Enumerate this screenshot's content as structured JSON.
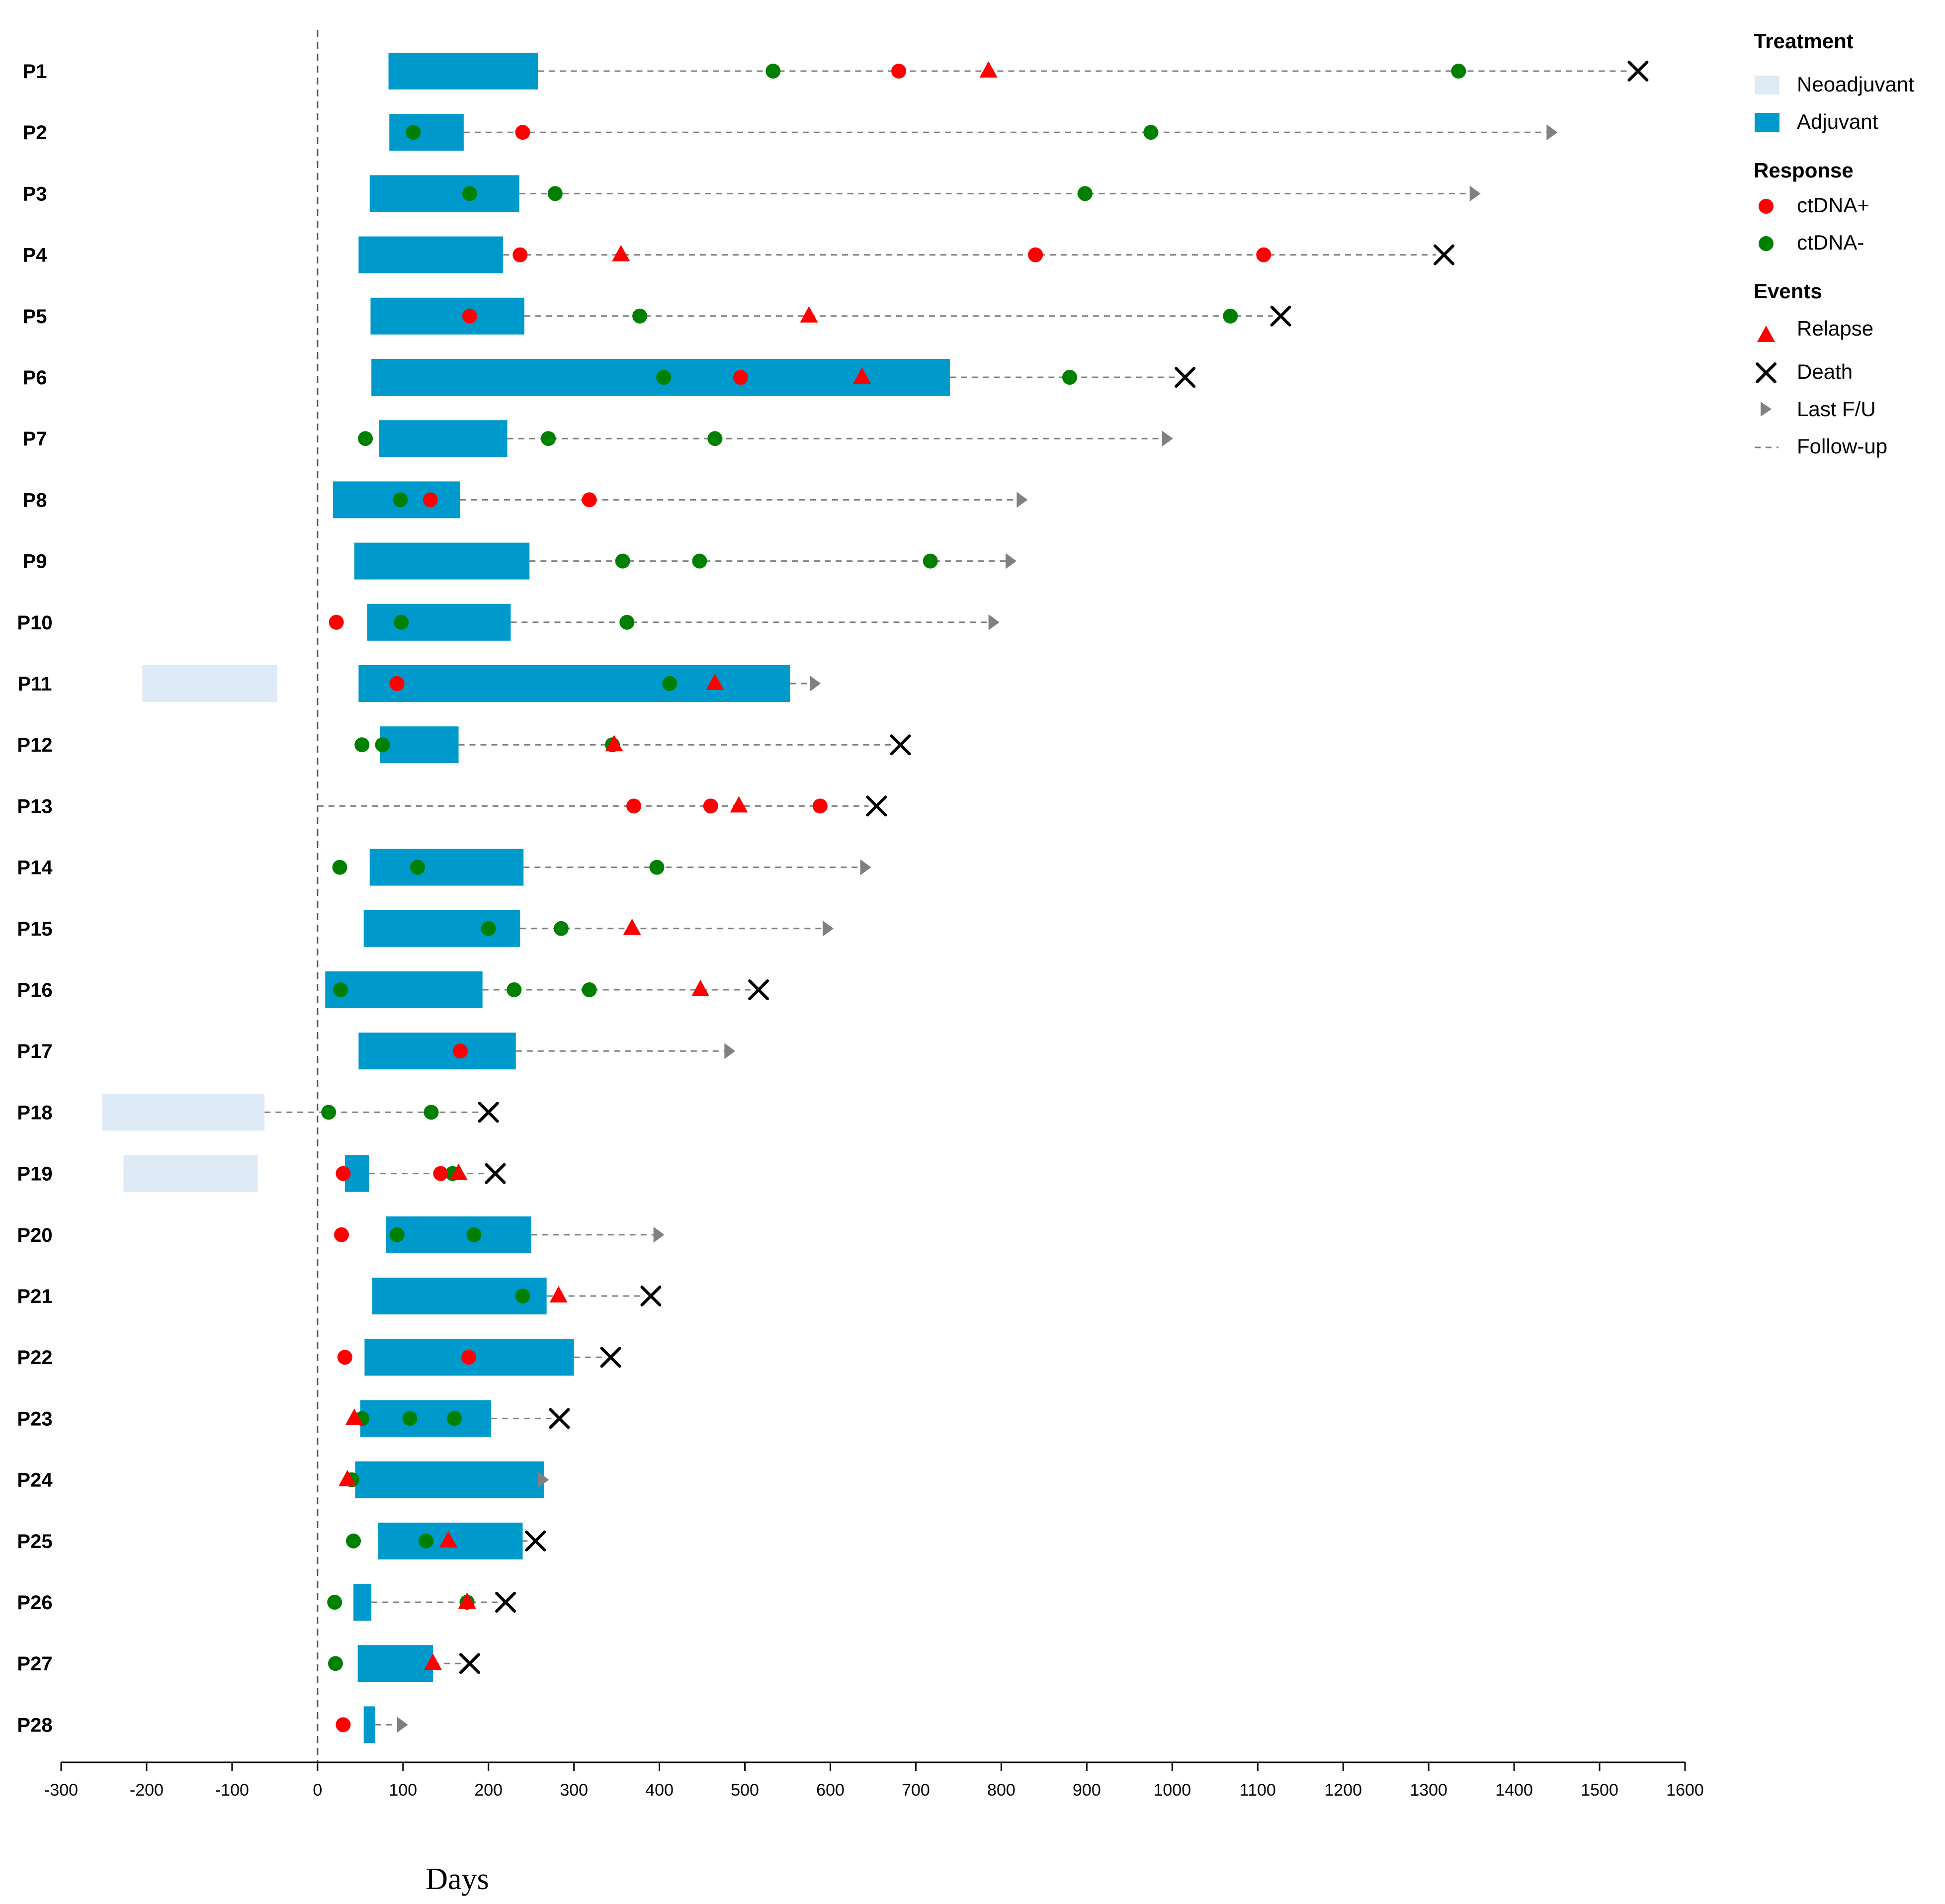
{
  "chart_data": {
    "type": "swimmer",
    "xlabel": "Days",
    "xlim": [
      -300,
      1600
    ],
    "x_ticks": [
      "-300",
      "-200",
      "-100",
      "0",
      "100",
      "200",
      "300",
      "400",
      "500",
      "600",
      "700",
      "800",
      "900",
      "1000",
      "1100",
      "1200",
      "1300",
      "1400",
      "1500",
      "1600"
    ],
    "colors": {
      "neoadjuvant": "#deebf7",
      "adjuvant": "#0099cc",
      "ctdna_pos": "#ff0000",
      "ctdna_neg": "#008000",
      "relapse": "#ff0000",
      "death": "#000000",
      "last_fu": "#808080",
      "follow_up": "#808080"
    },
    "legend": {
      "treatment_title": "Treatment",
      "neoadjuvant": "Neoadjuvant",
      "adjuvant": "Adjuvant",
      "response_title": "Response",
      "ctdna_pos": "ctDNA+",
      "ctdna_neg": "ctDNA-",
      "events_title": "Events",
      "relapse": "Relapse",
      "death": "Death",
      "last_fu": "Last F/U",
      "follow_up": "Follow-up"
    },
    "patients": [
      {
        "id": "P1",
        "neo": null,
        "adj": [
          83,
          258
        ],
        "pos": [
          680
        ],
        "neg": [
          533,
          1335
        ],
        "relapse": [
          785
        ],
        "end": 1545,
        "outcome": "death"
      },
      {
        "id": "P2",
        "neo": null,
        "adj": [
          84,
          171
        ],
        "pos": [
          240
        ],
        "neg": [
          112,
          975
        ],
        "relapse": [],
        "end": 1445,
        "outcome": "last_fu"
      },
      {
        "id": "P3",
        "neo": null,
        "adj": [
          61,
          236
        ],
        "pos": [],
        "neg": [
          178,
          278,
          898
        ],
        "relapse": [],
        "end": 1355,
        "outcome": "last_fu"
      },
      {
        "id": "P4",
        "neo": null,
        "adj": [
          48,
          217
        ],
        "pos": [
          237,
          840,
          1107
        ],
        "neg": [],
        "relapse": [
          355
        ],
        "end": 1318,
        "outcome": "death"
      },
      {
        "id": "P5",
        "neo": null,
        "adj": [
          62,
          242
        ],
        "pos": [
          178
        ],
        "neg": [
          377,
          1068
        ],
        "relapse": [
          575
        ],
        "end": 1127,
        "outcome": "death"
      },
      {
        "id": "P6",
        "neo": null,
        "adj": [
          63,
          740
        ],
        "pos": [
          495
        ],
        "neg": [
          405,
          880
        ],
        "relapse": [
          637
        ],
        "end": 1015,
        "outcome": "death"
      },
      {
        "id": "P7",
        "neo": null,
        "adj": [
          72,
          222
        ],
        "pos": [],
        "neg": [
          56,
          270,
          465
        ],
        "relapse": [],
        "end": 995,
        "outcome": "last_fu"
      },
      {
        "id": "P8",
        "neo": null,
        "adj": [
          18,
          167
        ],
        "pos": [
          132,
          318
        ],
        "neg": [
          97
        ],
        "relapse": [],
        "end": 825,
        "outcome": "last_fu"
      },
      {
        "id": "P9",
        "neo": null,
        "adj": [
          43,
          248
        ],
        "pos": [],
        "neg": [
          357,
          447,
          717
        ],
        "relapse": [],
        "end": 812,
        "outcome": "last_fu"
      },
      {
        "id": "P10",
        "neo": null,
        "adj": [
          58,
          226
        ],
        "pos": [
          22
        ],
        "neg": [
          98,
          362
        ],
        "relapse": [],
        "end": 792,
        "outcome": "last_fu"
      },
      {
        "id": "P11",
        "neo": [
          -205,
          -47
        ],
        "adj": [
          48,
          553
        ],
        "pos": [
          93
        ],
        "neg": [
          412
        ],
        "relapse": [
          465
        ],
        "end": 583,
        "outcome": "last_fu"
      },
      {
        "id": "P12",
        "neo": null,
        "adj": [
          73,
          165
        ],
        "pos": [],
        "neg": [
          52,
          76,
          345
        ],
        "relapse": [
          347
        ],
        "end": 682,
        "outcome": "death"
      },
      {
        "id": "P13",
        "neo": null,
        "adj": null,
        "pos": [
          370,
          460,
          588
        ],
        "neg": [],
        "relapse": [
          493
        ],
        "end": 654,
        "outcome": "death"
      },
      {
        "id": "P14",
        "neo": null,
        "adj": [
          61,
          241
        ],
        "pos": [],
        "neg": [
          26,
          117,
          397
        ],
        "relapse": [],
        "end": 642,
        "outcome": "last_fu"
      },
      {
        "id": "P15",
        "neo": null,
        "adj": [
          54,
          237
        ],
        "pos": [],
        "neg": [
          200,
          285
        ],
        "relapse": [
          368
        ],
        "end": 598,
        "outcome": "last_fu"
      },
      {
        "id": "P16",
        "neo": null,
        "adj": [
          9,
          193
        ],
        "pos": [],
        "neg": [
          27,
          230,
          318
        ],
        "relapse": [
          448
        ],
        "end": 516,
        "outcome": "death"
      },
      {
        "id": "P17",
        "neo": null,
        "adj": [
          48,
          232
        ],
        "pos": [
          167
        ],
        "neg": [],
        "relapse": [],
        "end": 483,
        "outcome": "last_fu"
      },
      {
        "id": "P18",
        "neo": [
          -252,
          -62
        ],
        "adj": null,
        "pos": [],
        "neg": [
          13,
          133
        ],
        "relapse": [],
        "end": 200,
        "outcome": "death"
      },
      {
        "id": "P19",
        "neo": [
          -227,
          -70
        ],
        "adj": [
          32,
          60
        ],
        "pos": [
          30,
          144
        ],
        "neg": [
          158
        ],
        "relapse": [
          165
        ],
        "end": 208,
        "outcome": "death"
      },
      {
        "id": "P20",
        "neo": null,
        "adj": [
          80,
          250
        ],
        "pos": [
          28
        ],
        "neg": [
          93,
          183
        ],
        "relapse": [],
        "end": 400,
        "outcome": "last_fu"
      },
      {
        "id": "P21",
        "neo": null,
        "adj": [
          64,
          268
        ],
        "pos": [],
        "neg": [
          240
        ],
        "relapse": [
          282
        ],
        "end": 390,
        "outcome": "death"
      },
      {
        "id": "P22",
        "neo": null,
        "adj": [
          55,
          300
        ],
        "pos": [
          32,
          177
        ],
        "neg": [],
        "relapse": [],
        "end": 343,
        "outcome": "death"
      },
      {
        "id": "P23",
        "neo": null,
        "adj": [
          50,
          203
        ],
        "pos": [],
        "neg": [
          52,
          108,
          160
        ],
        "relapse": [
          43
        ],
        "end": 283,
        "outcome": "death"
      },
      {
        "id": "P24",
        "neo": null,
        "adj": [
          44,
          265
        ],
        "pos": [],
        "neg": [
          40
        ],
        "relapse": [
          35
        ],
        "end": 265,
        "outcome": "last_fu"
      },
      {
        "id": "P25",
        "neo": null,
        "adj": [
          71,
          240
        ],
        "pos": [],
        "neg": [
          42,
          127
        ],
        "relapse": [
          153
        ],
        "end": 255,
        "outcome": "death"
      },
      {
        "id": "P26",
        "neo": null,
        "adj": [
          42,
          63
        ],
        "pos": [],
        "neg": [
          20,
          175
        ],
        "relapse": [
          175
        ],
        "end": 220,
        "outcome": "death"
      },
      {
        "id": "P27",
        "neo": null,
        "adj": [
          47,
          135
        ],
        "pos": [],
        "neg": [
          21
        ],
        "relapse": [
          135
        ],
        "end": 178,
        "outcome": "death"
      },
      {
        "id": "P28",
        "neo": null,
        "adj": [
          54,
          67
        ],
        "pos": [
          30
        ],
        "neg": [],
        "relapse": [],
        "end": 100,
        "outcome": "last_fu"
      }
    ]
  }
}
